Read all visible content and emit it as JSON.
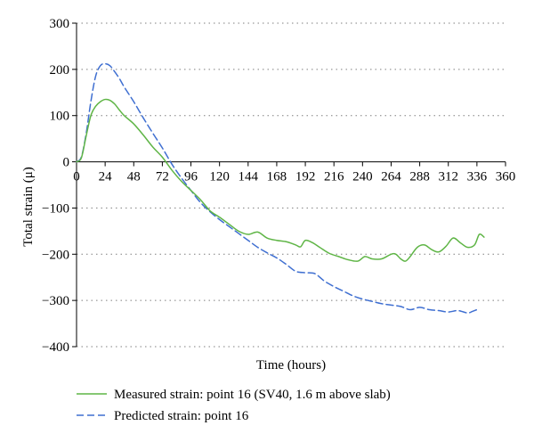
{
  "colors": {
    "measured": "#5fb546",
    "predicted": "#3f6fd1",
    "axis": "#000000",
    "grid": "#7f7f7f"
  },
  "chart_data": {
    "type": "line",
    "xlabel": "Time (hours)",
    "ylabel": "Total strain (μ)",
    "xlim": [
      0,
      360
    ],
    "ylim": [
      -400,
      300
    ],
    "x_ticks": [
      0,
      24,
      48,
      72,
      96,
      120,
      144,
      168,
      192,
      216,
      240,
      264,
      288,
      312,
      336,
      360
    ],
    "x_tick_labels": [
      "0",
      "24",
      "48",
      "72",
      "96",
      "120",
      "144",
      "168",
      "192",
      "216",
      "240",
      "264",
      "288",
      "312",
      "336",
      "360"
    ],
    "y_ticks": [
      300,
      200,
      100,
      0,
      -100,
      -200,
      -300,
      -400
    ],
    "y_tick_labels": [
      "300",
      "200",
      "100",
      "0",
      "−100",
      "−200",
      "−300",
      "−400"
    ],
    "grid": "horizontal dotted",
    "legend_position": "bottom",
    "series": [
      {
        "name": "Measured strain: point 16 (SV40, 1.6 m above slab)",
        "style": "solid",
        "x": [
          0,
          4,
          8,
          12,
          16,
          20,
          24,
          28,
          32,
          36,
          40,
          48,
          56,
          64,
          72,
          80,
          88,
          96,
          104,
          112,
          120,
          128,
          136,
          144,
          152,
          160,
          168,
          176,
          184,
          188,
          192,
          198,
          204,
          212,
          220,
          228,
          236,
          242,
          248,
          256,
          264,
          268,
          272,
          276,
          280,
          286,
          292,
          298,
          304,
          310,
          316,
          322,
          328,
          334,
          338,
          342
        ],
        "y": [
          0,
          8,
          55,
          100,
          120,
          130,
          135,
          133,
          125,
          112,
          100,
          82,
          58,
          32,
          10,
          -18,
          -42,
          -62,
          -82,
          -106,
          -120,
          -135,
          -150,
          -157,
          -152,
          -165,
          -170,
          -173,
          -180,
          -184,
          -170,
          -175,
          -185,
          -198,
          -205,
          -212,
          -215,
          -205,
          -210,
          -210,
          -200,
          -200,
          -210,
          -215,
          -205,
          -185,
          -180,
          -190,
          -195,
          -183,
          -165,
          -175,
          -185,
          -180,
          -157,
          -163
        ]
      },
      {
        "name": "Predicted strain: point 16",
        "style": "dashed",
        "x": [
          0,
          4,
          8,
          12,
          16,
          20,
          24,
          28,
          32,
          36,
          40,
          48,
          56,
          64,
          72,
          80,
          88,
          96,
          104,
          112,
          120,
          128,
          136,
          144,
          152,
          160,
          168,
          176,
          184,
          192,
          200,
          208,
          216,
          224,
          232,
          240,
          248,
          256,
          264,
          272,
          280,
          288,
          296,
          304,
          312,
          320,
          328,
          332,
          336,
          338
        ],
        "y": [
          0,
          10,
          60,
          130,
          185,
          208,
          212,
          208,
          195,
          180,
          162,
          130,
          95,
          62,
          30,
          -5,
          -35,
          -62,
          -88,
          -108,
          -125,
          -140,
          -155,
          -170,
          -185,
          -197,
          -208,
          -222,
          -237,
          -240,
          -242,
          -258,
          -270,
          -280,
          -290,
          -297,
          -302,
          -307,
          -310,
          -313,
          -320,
          -315,
          -320,
          -322,
          -325,
          -322,
          -327,
          -324,
          -320,
          -318
        ]
      }
    ]
  }
}
